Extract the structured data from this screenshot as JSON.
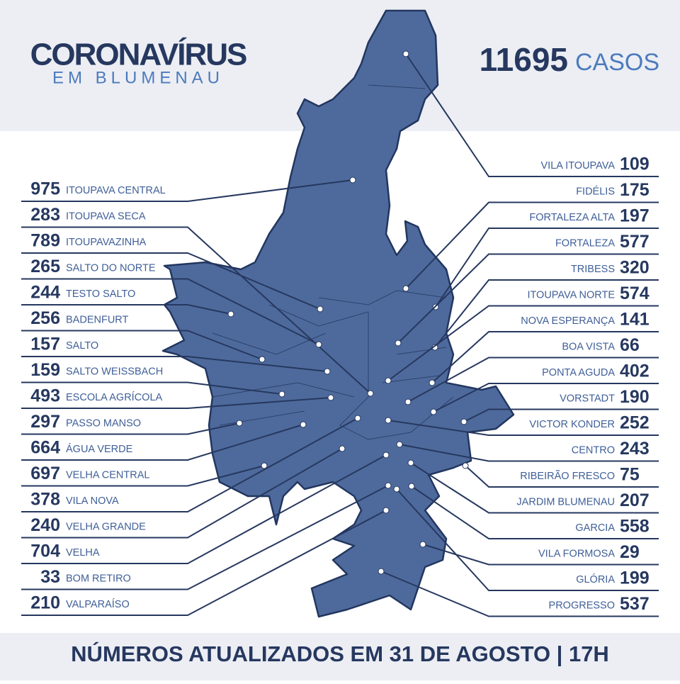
{
  "header": {
    "title": "CORONAVÍRUS",
    "subtitle": "EM BLUMENAU",
    "total": 11695,
    "total_label": "CASOS"
  },
  "left": [
    {
      "cases": 975,
      "name": "ITOUPAVA CENTRAL"
    },
    {
      "cases": 283,
      "name": "ITOUPAVA SECA"
    },
    {
      "cases": 789,
      "name": "ITOUPAVAZINHA"
    },
    {
      "cases": 265,
      "name": "SALTO DO NORTE"
    },
    {
      "cases": 244,
      "name": "TESTO SALTO"
    },
    {
      "cases": 256,
      "name": "BADENFURT"
    },
    {
      "cases": 157,
      "name": "SALTO"
    },
    {
      "cases": 159,
      "name": "SALTO WEISSBACH"
    },
    {
      "cases": 493,
      "name": "ESCOLA AGRÍCOLA"
    },
    {
      "cases": 297,
      "name": "PASSO MANSO"
    },
    {
      "cases": 664,
      "name": "ÁGUA VERDE"
    },
    {
      "cases": 697,
      "name": "VELHA CENTRAL"
    },
    {
      "cases": 378,
      "name": "VILA NOVA"
    },
    {
      "cases": 240,
      "name": "VELHA GRANDE"
    },
    {
      "cases": 704,
      "name": "VELHA"
    },
    {
      "cases": 33,
      "name": "BOM RETIRO"
    },
    {
      "cases": 210,
      "name": "VALPARAÍSO"
    }
  ],
  "right": [
    {
      "name": "VILA ITOUPAVA",
      "cases": 109
    },
    {
      "name": "FIDÉLIS",
      "cases": 175
    },
    {
      "name": "FORTALEZA ALTA",
      "cases": 197
    },
    {
      "name": "FORTALEZA",
      "cases": 577
    },
    {
      "name": "TRIBESS",
      "cases": 320
    },
    {
      "name": "ITOUPAVA NORTE",
      "cases": 574
    },
    {
      "name": "NOVA ESPERANÇA",
      "cases": 141
    },
    {
      "name": "BOA VISTA",
      "cases": 66
    },
    {
      "name": "PONTA AGUDA",
      "cases": 402
    },
    {
      "name": "VORSTADT",
      "cases": 190
    },
    {
      "name": "VICTOR KONDER",
      "cases": 252
    },
    {
      "name": "CENTRO",
      "cases": 243
    },
    {
      "name": "RIBEIRÃO FRESCO",
      "cases": 75
    },
    {
      "name": "JARDIM BLUMENAU",
      "cases": 207
    },
    {
      "name": "GARCIA",
      "cases": 558
    },
    {
      "name": "VILA FORMOSA",
      "cases": 29
    },
    {
      "name": "GLÓRIA",
      "cases": 199
    },
    {
      "name": "PROGRESSO",
      "cases": 537
    }
  ],
  "footer": "NÚMEROS ATUALIZADOS EM 31 DE AGOSTO | 17H"
}
